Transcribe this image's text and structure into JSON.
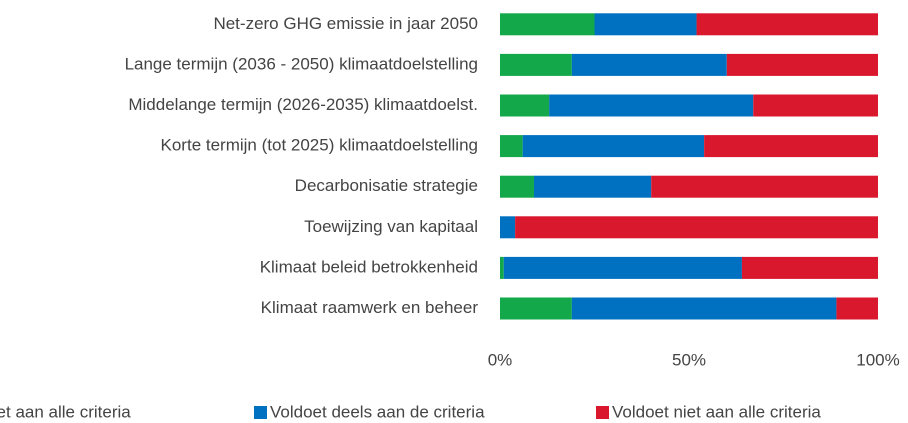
{
  "chart_data": {
    "type": "stacked_barh",
    "categories": [
      "Net-zero GHG emissie in jaar 2050",
      "Lange termijn (2036 - 2050) klimaatdoelstelling",
      "Middelange termijn (2026-2035) klimaatdoelst.",
      "Korte termijn (tot 2025) klimaatdoelstelling",
      "Decarbonisatie strategie",
      "Toewijzing van kapitaal",
      "Klimaat beleid betrokkenheid",
      "Klimaat raamwerk en beheer"
    ],
    "series": [
      {
        "name": "Voldoet aan alle criteria",
        "color": "#13a84a",
        "values": [
          25,
          19,
          13,
          6,
          9,
          0,
          1,
          19
        ]
      },
      {
        "name": "Voldoet deels aan de criteria",
        "color": "#0070c0",
        "values": [
          27,
          41,
          54,
          48,
          31,
          4,
          63,
          70
        ]
      },
      {
        "name": "Voldoet niet aan alle criteria",
        "color": "#d9172d",
        "values": [
          48,
          40,
          33,
          46,
          60,
          96,
          36,
          11
        ]
      }
    ],
    "xlim": [
      0,
      100
    ],
    "xticks": [
      {
        "value": 0,
        "label": "0%"
      },
      {
        "value": 50,
        "label": "50%"
      },
      {
        "value": 100,
        "label": "100%"
      }
    ],
    "legend": "bottom"
  }
}
